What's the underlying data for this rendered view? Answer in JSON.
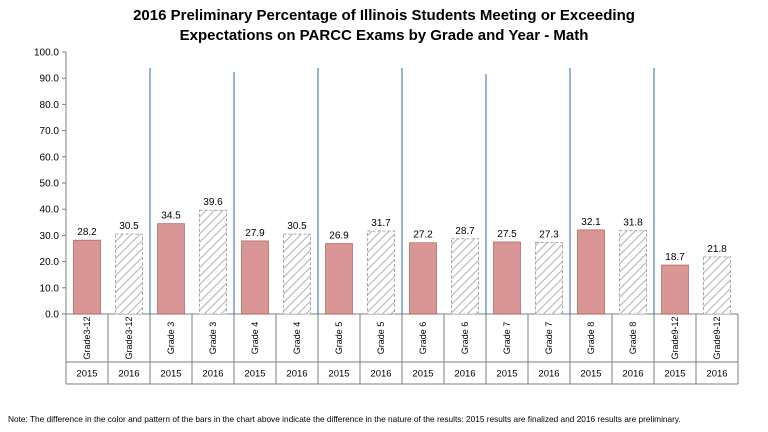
{
  "chart_data": {
    "type": "bar",
    "title_lines": [
      "2016 Preliminary Percentage of Illinois Students Meeting or Exceeding",
      "Expectations on PARCC Exams by Grade and Year - Math"
    ],
    "categories": [
      {
        "grade": "Grade3-12",
        "year": "2015"
      },
      {
        "grade": "Grade3-12",
        "year": "2016"
      },
      {
        "grade": "Grade 3",
        "year": "2015"
      },
      {
        "grade": "Grade 3",
        "year": "2016"
      },
      {
        "grade": "Grade 4",
        "year": "2015"
      },
      {
        "grade": "Grade 4",
        "year": "2016"
      },
      {
        "grade": "Grade 5",
        "year": "2015"
      },
      {
        "grade": "Grade 5",
        "year": "2016"
      },
      {
        "grade": "Grade 6",
        "year": "2015"
      },
      {
        "grade": "Grade 6",
        "year": "2016"
      },
      {
        "grade": "Grade 7",
        "year": "2015"
      },
      {
        "grade": "Grade 7",
        "year": "2016"
      },
      {
        "grade": "Grade 8",
        "year": "2015"
      },
      {
        "grade": "Grade 8",
        "year": "2016"
      },
      {
        "grade": "Grade9-12",
        "year": "2015"
      },
      {
        "grade": "Grade9-12",
        "year": "2016"
      }
    ],
    "values": [
      28.2,
      30.5,
      34.5,
      39.6,
      27.9,
      30.5,
      26.9,
      31.7,
      27.2,
      28.7,
      27.5,
      27.3,
      32.1,
      31.8,
      18.7,
      21.8
    ],
    "data_labels": [
      "28.2",
      "30.5",
      "34.5",
      "39.6",
      "27.9",
      "30.5",
      "26.9",
      "31.7",
      "27.2",
      "28.7",
      "27.5",
      "27.3",
      "32.1",
      "31.8",
      "18.7",
      "21.8"
    ],
    "y_ticks": [
      "0.0",
      "10.0",
      "20.0",
      "30.0",
      "40.0",
      "50.0",
      "60.0",
      "70.0",
      "80.0",
      "90.0",
      "100.0"
    ],
    "ylim": [
      0,
      100
    ],
    "grid": false,
    "colors": {
      "final_2015": "#d99694",
      "final_2015_border": "#a0504e",
      "prelim_hatch": "#a6a6a6",
      "separator": "#4f81bd"
    }
  },
  "note": "Note: The difference in the color and pattern of the bars in the chart above indicate the difference in the nature of the results: 2015 results are finalized and 2016 results are preliminary."
}
